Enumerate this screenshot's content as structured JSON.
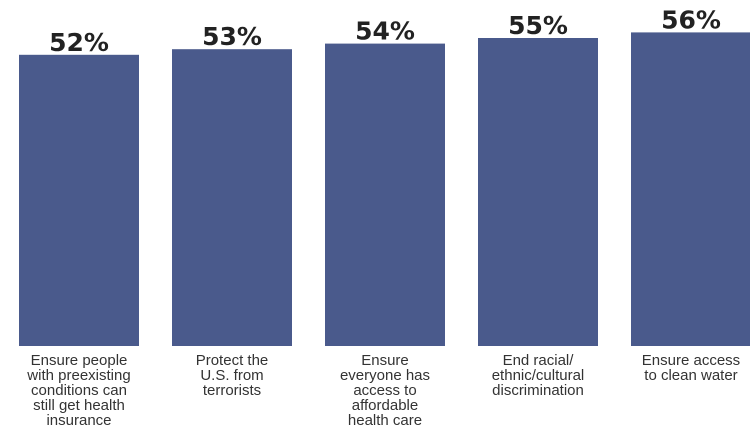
{
  "chart_data": {
    "type": "bar",
    "categories": [
      [
        "Ensure people",
        "with preexisting",
        "conditions can",
        "still get health",
        "insurance"
      ],
      [
        "Protect the",
        "U.S. from",
        "terrorists"
      ],
      [
        "Ensure",
        "everyone has",
        "access to",
        "affordable",
        "health care"
      ],
      [
        "End racial/",
        "ethnic/cultural",
        "discrimination"
      ],
      [
        "Ensure access",
        "to clean water"
      ]
    ],
    "values": [
      52,
      53,
      54,
      55,
      56
    ],
    "value_labels": [
      "52%",
      "53%",
      "54%",
      "55%",
      "56%"
    ],
    "bar_color": "#4a5a8c",
    "grid": false,
    "legend": "none"
  }
}
